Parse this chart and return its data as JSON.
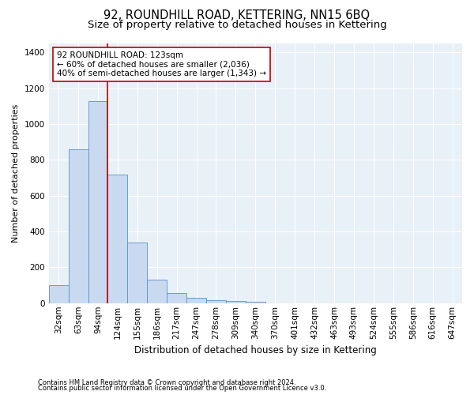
{
  "title": "92, ROUNDHILL ROAD, KETTERING, NN15 6BQ",
  "subtitle": "Size of property relative to detached houses in Kettering",
  "xlabel": "Distribution of detached houses by size in Kettering",
  "ylabel": "Number of detached properties",
  "footnote1": "Contains HM Land Registry data © Crown copyright and database right 2024.",
  "footnote2": "Contains public sector information licensed under the Open Government Licence v3.0.",
  "bar_labels": [
    "32sqm",
    "63sqm",
    "94sqm",
    "124sqm",
    "155sqm",
    "186sqm",
    "217sqm",
    "247sqm",
    "278sqm",
    "309sqm",
    "340sqm",
    "370sqm",
    "401sqm",
    "432sqm",
    "463sqm",
    "493sqm",
    "524sqm",
    "555sqm",
    "586sqm",
    "616sqm",
    "647sqm"
  ],
  "bar_values": [
    100,
    860,
    1130,
    720,
    340,
    130,
    55,
    28,
    18,
    12,
    8,
    0,
    0,
    0,
    0,
    0,
    0,
    0,
    0,
    0,
    0
  ],
  "bar_color": "#c9daf0",
  "bar_edge_color": "#5b8fc9",
  "vline_x": 2.5,
  "vline_color": "#c00000",
  "annotation_text": "92 ROUNDHILL ROAD: 123sqm\n← 60% of detached houses are smaller (2,036)\n40% of semi-detached houses are larger (1,343) →",
  "annotation_box_facecolor": "#ffffff",
  "annotation_box_edgecolor": "#c00000",
  "ylim": [
    0,
    1450
  ],
  "yticks": [
    0,
    200,
    400,
    600,
    800,
    1000,
    1200,
    1400
  ],
  "plot_bg_color": "#e8f0f8",
  "grid_color": "#ffffff",
  "title_fontsize": 10.5,
  "subtitle_fontsize": 9.5,
  "xlabel_fontsize": 8.5,
  "ylabel_fontsize": 8,
  "tick_fontsize": 7.5,
  "annot_fontsize": 7.5,
  "footnote_fontsize": 6
}
